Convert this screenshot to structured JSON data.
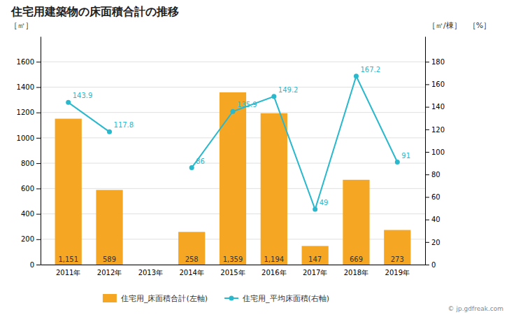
{
  "chart_data": {
    "type": "bar",
    "title": "住宅用建築物の床面積合計の推移",
    "ylabel": "［㎡］",
    "y2label": [
      "［㎡/棟］",
      "［%］"
    ],
    "annotations": [
      "© jp.gdfreak.com"
    ],
    "categories": [
      "2011年",
      "2012年",
      "2013年",
      "2014年",
      "2015年",
      "2016年",
      "2017年",
      "2018年",
      "2019年"
    ],
    "series": [
      {
        "name": "住宅用_床面積合計(左軸)",
        "type": "bar",
        "color": "#f5a623",
        "values": [
          1151,
          589,
          0,
          258,
          1359,
          1194,
          147,
          669,
          273
        ],
        "data_labels": true,
        "value_labels": [
          "1,151",
          "589",
          null,
          "258",
          "1,359",
          "1,194",
          "147",
          "669",
          "273"
        ]
      },
      {
        "name": "住宅用_平均床面積(右軸)",
        "type": "line",
        "axis": "y2",
        "color": "#29b8cc",
        "marker": "circle",
        "values": [
          143.9,
          117.8,
          null,
          86,
          135.9,
          149.2,
          49,
          167.2,
          91
        ],
        "data_labels": true
      }
    ],
    "ylim": [
      0,
      1800
    ],
    "yticks": [
      0,
      200,
      400,
      600,
      800,
      1000,
      1200,
      1400,
      1600
    ],
    "y2lim": [
      0,
      202.5
    ],
    "y2ticks": [
      0,
      20,
      40,
      60,
      80,
      100,
      120,
      140,
      160,
      180
    ],
    "grid": true,
    "legend": "bottom"
  }
}
